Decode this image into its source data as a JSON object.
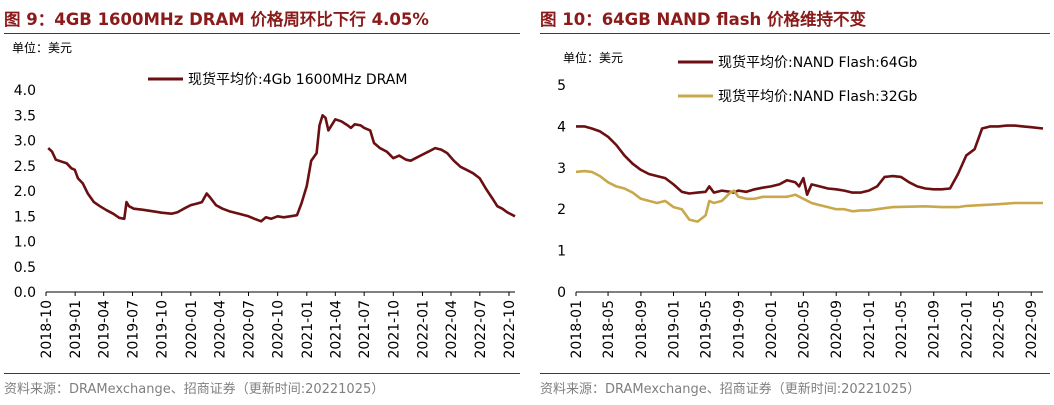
{
  "chart_data": [
    {
      "type": "line",
      "title": "图 9：4GB 1600MHz DRAM 价格周环比下行 4.05%",
      "unit_label": "单位：美元",
      "source": "资料来源：DRAMexchange、招商证券（更新时间:20221025）",
      "ylim": [
        0,
        4
      ],
      "yticks": [
        "4.0",
        "3.5",
        "3.0",
        "2.5",
        "2.0",
        "1.5",
        "1.0",
        "0.5",
        "0.0"
      ],
      "xticks": [
        "2018-10",
        "2019-01",
        "2019-04",
        "2019-07",
        "2019-10",
        "2020-01",
        "2020-04",
        "2020-07",
        "2020-10",
        "2021-01",
        "2021-04",
        "2021-07",
        "2021-10",
        "2022-01",
        "2022-04",
        "2022-07",
        "2022-10"
      ],
      "legend_position": "top",
      "series": [
        {
          "name": "现货平均价:4Gb 1600MHz DRAM",
          "color": "#6b0f12",
          "points": [
            [
              "2018-10-08",
              2.85
            ],
            [
              "2018-10-20",
              2.78
            ],
            [
              "2018-11-01",
              2.62
            ],
            [
              "2018-11-20",
              2.58
            ],
            [
              "2018-12-05",
              2.55
            ],
            [
              "2018-12-20",
              2.45
            ],
            [
              "2018-12-31",
              2.42
            ],
            [
              "2019-01-10",
              2.25
            ],
            [
              "2019-01-25",
              2.15
            ],
            [
              "2019-02-10",
              1.95
            ],
            [
              "2019-03-01",
              1.78
            ],
            [
              "2019-03-20",
              1.7
            ],
            [
              "2019-04-10",
              1.62
            ],
            [
              "2019-05-01",
              1.55
            ],
            [
              "2019-05-20",
              1.47
            ],
            [
              "2019-06-05",
              1.45
            ],
            [
              "2019-06-12",
              1.78
            ],
            [
              "2019-06-20",
              1.7
            ],
            [
              "2019-07-05",
              1.65
            ],
            [
              "2019-08-01",
              1.63
            ],
            [
              "2019-09-01",
              1.6
            ],
            [
              "2019-10-01",
              1.57
            ],
            [
              "2019-11-01",
              1.55
            ],
            [
              "2019-11-20",
              1.58
            ],
            [
              "2019-12-10",
              1.65
            ],
            [
              "2020-01-01",
              1.72
            ],
            [
              "2020-01-20",
              1.75
            ],
            [
              "2020-02-05",
              1.78
            ],
            [
              "2020-02-20",
              1.95
            ],
            [
              "2020-03-01",
              1.88
            ],
            [
              "2020-03-20",
              1.72
            ],
            [
              "2020-04-10",
              1.65
            ],
            [
              "2020-05-01",
              1.6
            ],
            [
              "2020-06-01",
              1.55
            ],
            [
              "2020-07-01",
              1.5
            ],
            [
              "2020-07-20",
              1.45
            ],
            [
              "2020-08-10",
              1.4
            ],
            [
              "2020-08-25",
              1.48
            ],
            [
              "2020-09-10",
              1.45
            ],
            [
              "2020-10-01",
              1.5
            ],
            [
              "2020-10-20",
              1.48
            ],
            [
              "2020-11-10",
              1.5
            ],
            [
              "2020-12-01",
              1.52
            ],
            [
              "2020-12-15",
              1.75
            ],
            [
              "2021-01-01",
              2.1
            ],
            [
              "2021-01-15",
              2.6
            ],
            [
              "2021-02-01",
              2.75
            ],
            [
              "2021-02-10",
              3.3
            ],
            [
              "2021-02-20",
              3.5
            ],
            [
              "2021-03-01",
              3.45
            ],
            [
              "2021-03-10",
              3.2
            ],
            [
              "2021-03-20",
              3.3
            ],
            [
              "2021-04-01",
              3.42
            ],
            [
              "2021-04-20",
              3.38
            ],
            [
              "2021-05-10",
              3.3
            ],
            [
              "2021-05-20",
              3.25
            ],
            [
              "2021-06-01",
              3.32
            ],
            [
              "2021-06-20",
              3.3
            ],
            [
              "2021-07-01",
              3.25
            ],
            [
              "2021-07-20",
              3.2
            ],
            [
              "2021-08-01",
              2.95
            ],
            [
              "2021-08-20",
              2.85
            ],
            [
              "2021-09-10",
              2.78
            ],
            [
              "2021-10-01",
              2.65
            ],
            [
              "2021-10-20",
              2.7
            ],
            [
              "2021-11-10",
              2.62
            ],
            [
              "2021-11-25",
              2.6
            ],
            [
              "2021-12-10",
              2.65
            ],
            [
              "2022-01-01",
              2.72
            ],
            [
              "2022-01-20",
              2.78
            ],
            [
              "2022-02-10",
              2.85
            ],
            [
              "2022-03-01",
              2.82
            ],
            [
              "2022-03-20",
              2.75
            ],
            [
              "2022-04-10",
              2.6
            ],
            [
              "2022-05-01",
              2.48
            ],
            [
              "2022-05-20",
              2.42
            ],
            [
              "2022-06-10",
              2.35
            ],
            [
              "2022-07-01",
              2.25
            ],
            [
              "2022-07-20",
              2.05
            ],
            [
              "2022-08-10",
              1.85
            ],
            [
              "2022-08-25",
              1.7
            ],
            [
              "2022-09-10",
              1.65
            ],
            [
              "2022-09-25",
              1.58
            ],
            [
              "2022-10-20",
              1.5
            ]
          ]
        }
      ]
    },
    {
      "type": "line",
      "title": "图 10：64GB NAND flash 价格维持不变",
      "unit_label": "单位：美元",
      "source": "资料来源：DRAMexchange、招商证券（更新时间:20221025）",
      "ylim": [
        0,
        5
      ],
      "yticks": [
        "5",
        "4",
        "3",
        "2",
        "1",
        "0"
      ],
      "xticks": [
        "2018-01",
        "2018-05",
        "2018-09",
        "2019-01",
        "2019-05",
        "2019-09",
        "2020-01",
        "2020-05",
        "2020-09",
        "2021-01",
        "2021-05",
        "2021-09",
        "2022-01",
        "2022-05",
        "2022-09"
      ],
      "legend_position": "top",
      "series": [
        {
          "name": "现货平均价:NAND Flash:64Gb",
          "color": "#6b0f12",
          "points": [
            [
              "2018-01-01",
              4.0
            ],
            [
              "2018-02-01",
              4.0
            ],
            [
              "2018-03-01",
              3.95
            ],
            [
              "2018-04-01",
              3.88
            ],
            [
              "2018-05-01",
              3.75
            ],
            [
              "2018-06-01",
              3.55
            ],
            [
              "2018-07-01",
              3.3
            ],
            [
              "2018-08-01",
              3.1
            ],
            [
              "2018-09-01",
              2.95
            ],
            [
              "2018-10-01",
              2.85
            ],
            [
              "2018-11-01",
              2.8
            ],
            [
              "2018-12-01",
              2.75
            ],
            [
              "2019-01-01",
              2.6
            ],
            [
              "2019-02-01",
              2.42
            ],
            [
              "2019-03-01",
              2.38
            ],
            [
              "2019-04-01",
              2.4
            ],
            [
              "2019-05-01",
              2.42
            ],
            [
              "2019-05-15",
              2.55
            ],
            [
              "2019-06-01",
              2.4
            ],
            [
              "2019-07-01",
              2.45
            ],
            [
              "2019-08-01",
              2.42
            ],
            [
              "2019-08-15",
              2.4
            ],
            [
              "2019-09-01",
              2.45
            ],
            [
              "2019-10-01",
              2.42
            ],
            [
              "2019-11-01",
              2.48
            ],
            [
              "2019-12-01",
              2.52
            ],
            [
              "2020-01-01",
              2.55
            ],
            [
              "2020-02-01",
              2.6
            ],
            [
              "2020-03-01",
              2.7
            ],
            [
              "2020-04-01",
              2.65
            ],
            [
              "2020-04-15",
              2.55
            ],
            [
              "2020-05-01",
              2.75
            ],
            [
              "2020-05-15",
              2.35
            ],
            [
              "2020-06-01",
              2.6
            ],
            [
              "2020-07-01",
              2.55
            ],
            [
              "2020-08-01",
              2.5
            ],
            [
              "2020-09-01",
              2.48
            ],
            [
              "2020-10-01",
              2.45
            ],
            [
              "2020-11-01",
              2.4
            ],
            [
              "2020-12-01",
              2.4
            ],
            [
              "2021-01-01",
              2.45
            ],
            [
              "2021-02-01",
              2.55
            ],
            [
              "2021-03-01",
              2.78
            ],
            [
              "2021-04-01",
              2.8
            ],
            [
              "2021-05-01",
              2.78
            ],
            [
              "2021-06-01",
              2.65
            ],
            [
              "2021-07-01",
              2.55
            ],
            [
              "2021-08-01",
              2.5
            ],
            [
              "2021-09-01",
              2.48
            ],
            [
              "2021-10-01",
              2.48
            ],
            [
              "2021-11-01",
              2.5
            ],
            [
              "2021-12-01",
              2.85
            ],
            [
              "2022-01-01",
              3.3
            ],
            [
              "2022-02-01",
              3.45
            ],
            [
              "2022-03-01",
              3.95
            ],
            [
              "2022-04-01",
              4.0
            ],
            [
              "2022-05-01",
              4.0
            ],
            [
              "2022-06-01",
              4.02
            ],
            [
              "2022-07-01",
              4.02
            ],
            [
              "2022-08-01",
              4.0
            ],
            [
              "2022-09-01",
              3.98
            ],
            [
              "2022-10-15",
              3.95
            ]
          ]
        },
        {
          "name": "现货平均价:NAND Flash:32Gb",
          "color": "#c9a84c",
          "points": [
            [
              "2018-01-01",
              2.9
            ],
            [
              "2018-02-01",
              2.92
            ],
            [
              "2018-03-01",
              2.9
            ],
            [
              "2018-04-01",
              2.8
            ],
            [
              "2018-05-01",
              2.65
            ],
            [
              "2018-06-01",
              2.55
            ],
            [
              "2018-07-01",
              2.5
            ],
            [
              "2018-08-01",
              2.4
            ],
            [
              "2018-09-01",
              2.25
            ],
            [
              "2018-10-01",
              2.2
            ],
            [
              "2018-11-01",
              2.15
            ],
            [
              "2018-12-01",
              2.2
            ],
            [
              "2019-01-01",
              2.05
            ],
            [
              "2019-02-01",
              2.0
            ],
            [
              "2019-03-01",
              1.75
            ],
            [
              "2019-04-01",
              1.7
            ],
            [
              "2019-05-01",
              1.85
            ],
            [
              "2019-05-15",
              2.2
            ],
            [
              "2019-06-01",
              2.15
            ],
            [
              "2019-07-01",
              2.2
            ],
            [
              "2019-08-01",
              2.4
            ],
            [
              "2019-08-15",
              2.45
            ],
            [
              "2019-09-01",
              2.3
            ],
            [
              "2019-10-01",
              2.25
            ],
            [
              "2019-11-01",
              2.25
            ],
            [
              "2019-12-01",
              2.3
            ],
            [
              "2020-01-01",
              2.3
            ],
            [
              "2020-02-01",
              2.3
            ],
            [
              "2020-03-01",
              2.3
            ],
            [
              "2020-04-01",
              2.35
            ],
            [
              "2020-05-01",
              2.25
            ],
            [
              "2020-06-01",
              2.15
            ],
            [
              "2020-07-01",
              2.1
            ],
            [
              "2020-08-01",
              2.05
            ],
            [
              "2020-09-01",
              2.0
            ],
            [
              "2020-10-01",
              2.0
            ],
            [
              "2020-11-01",
              1.95
            ],
            [
              "2020-12-01",
              1.97
            ],
            [
              "2021-01-01",
              1.97
            ],
            [
              "2021-02-01",
              2.0
            ],
            [
              "2021-04-01",
              2.05
            ],
            [
              "2021-06-01",
              2.06
            ],
            [
              "2021-08-01",
              2.07
            ],
            [
              "2021-10-01",
              2.05
            ],
            [
              "2021-12-01",
              2.05
            ],
            [
              "2022-01-01",
              2.08
            ],
            [
              "2022-03-01",
              2.1
            ],
            [
              "2022-05-01",
              2.12
            ],
            [
              "2022-07-01",
              2.15
            ],
            [
              "2022-09-01",
              2.15
            ],
            [
              "2022-10-15",
              2.15
            ]
          ]
        }
      ]
    }
  ]
}
